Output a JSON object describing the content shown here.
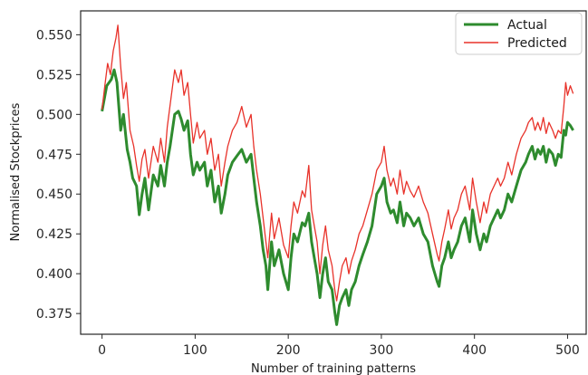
{
  "chart_data": {
    "type": "line",
    "title": "",
    "xlabel": "Number of training patterns",
    "ylabel": "Normalised Stockprices",
    "xlim": [
      -23,
      520
    ],
    "ylim": [
      0.362,
      0.565
    ],
    "xticks": [
      0,
      100,
      200,
      300,
      400,
      500
    ],
    "xtick_labels": [
      "0",
      "100",
      "200",
      "300",
      "400",
      "500"
    ],
    "yticks": [
      0.375,
      0.4,
      0.425,
      0.45,
      0.475,
      0.5,
      0.525,
      0.55
    ],
    "ytick_labels": [
      "0.375",
      "0.400",
      "0.425",
      "0.450",
      "0.475",
      "0.500",
      "0.525",
      "0.550"
    ],
    "grid": false,
    "legend_position": "top-right",
    "series": [
      {
        "name": "Actual",
        "color": "#2e8b2e",
        "points": [
          [
            0,
            0.502
          ],
          [
            5,
            0.518
          ],
          [
            10,
            0.522
          ],
          [
            13,
            0.528
          ],
          [
            16,
            0.52
          ],
          [
            20,
            0.49
          ],
          [
            23,
            0.5
          ],
          [
            27,
            0.478
          ],
          [
            30,
            0.47
          ],
          [
            33,
            0.46
          ],
          [
            37,
            0.455
          ],
          [
            40,
            0.437
          ],
          [
            43,
            0.45
          ],
          [
            46,
            0.46
          ],
          [
            50,
            0.44
          ],
          [
            55,
            0.462
          ],
          [
            60,
            0.455
          ],
          [
            63,
            0.468
          ],
          [
            67,
            0.455
          ],
          [
            70,
            0.47
          ],
          [
            73,
            0.48
          ],
          [
            78,
            0.5
          ],
          [
            82,
            0.502
          ],
          [
            85,
            0.497
          ],
          [
            88,
            0.49
          ],
          [
            92,
            0.496
          ],
          [
            95,
            0.475
          ],
          [
            98,
            0.462
          ],
          [
            102,
            0.47
          ],
          [
            105,
            0.465
          ],
          [
            110,
            0.47
          ],
          [
            113,
            0.455
          ],
          [
            117,
            0.465
          ],
          [
            121,
            0.445
          ],
          [
            125,
            0.455
          ],
          [
            128,
            0.438
          ],
          [
            132,
            0.45
          ],
          [
            135,
            0.462
          ],
          [
            140,
            0.47
          ],
          [
            145,
            0.474
          ],
          [
            150,
            0.478
          ],
          [
            155,
            0.47
          ],
          [
            160,
            0.475
          ],
          [
            163,
            0.46
          ],
          [
            166,
            0.445
          ],
          [
            170,
            0.43
          ],
          [
            173,
            0.415
          ],
          [
            176,
            0.405
          ],
          [
            178,
            0.39
          ],
          [
            182,
            0.42
          ],
          [
            185,
            0.405
          ],
          [
            190,
            0.415
          ],
          [
            195,
            0.4
          ],
          [
            200,
            0.39
          ],
          [
            203,
            0.41
          ],
          [
            206,
            0.425
          ],
          [
            210,
            0.42
          ],
          [
            215,
            0.432
          ],
          [
            218,
            0.43
          ],
          [
            222,
            0.438
          ],
          [
            225,
            0.42
          ],
          [
            228,
            0.41
          ],
          [
            231,
            0.4
          ],
          [
            234,
            0.385
          ],
          [
            237,
            0.4
          ],
          [
            240,
            0.41
          ],
          [
            243,
            0.395
          ],
          [
            247,
            0.39
          ],
          [
            250,
            0.376
          ],
          [
            252,
            0.368
          ],
          [
            255,
            0.38
          ],
          [
            258,
            0.385
          ],
          [
            262,
            0.39
          ],
          [
            265,
            0.38
          ],
          [
            268,
            0.39
          ],
          [
            272,
            0.395
          ],
          [
            276,
            0.405
          ],
          [
            280,
            0.412
          ],
          [
            285,
            0.42
          ],
          [
            290,
            0.43
          ],
          [
            295,
            0.45
          ],
          [
            300,
            0.455
          ],
          [
            303,
            0.46
          ],
          [
            306,
            0.445
          ],
          [
            310,
            0.438
          ],
          [
            313,
            0.44
          ],
          [
            317,
            0.432
          ],
          [
            320,
            0.445
          ],
          [
            324,
            0.43
          ],
          [
            327,
            0.438
          ],
          [
            331,
            0.435
          ],
          [
            335,
            0.43
          ],
          [
            340,
            0.435
          ],
          [
            345,
            0.425
          ],
          [
            350,
            0.42
          ],
          [
            355,
            0.405
          ],
          [
            360,
            0.395
          ],
          [
            362,
            0.392
          ],
          [
            365,
            0.405
          ],
          [
            368,
            0.41
          ],
          [
            372,
            0.42
          ],
          [
            375,
            0.41
          ],
          [
            378,
            0.415
          ],
          [
            382,
            0.42
          ],
          [
            386,
            0.43
          ],
          [
            390,
            0.435
          ],
          [
            395,
            0.42
          ],
          [
            398,
            0.44
          ],
          [
            402,
            0.425
          ],
          [
            406,
            0.415
          ],
          [
            410,
            0.425
          ],
          [
            413,
            0.42
          ],
          [
            417,
            0.43
          ],
          [
            421,
            0.435
          ],
          [
            425,
            0.44
          ],
          [
            428,
            0.435
          ],
          [
            432,
            0.44
          ],
          [
            436,
            0.45
          ],
          [
            440,
            0.445
          ],
          [
            445,
            0.455
          ],
          [
            450,
            0.465
          ],
          [
            455,
            0.47
          ],
          [
            458,
            0.475
          ],
          [
            462,
            0.48
          ],
          [
            465,
            0.472
          ],
          [
            468,
            0.478
          ],
          [
            471,
            0.475
          ],
          [
            474,
            0.48
          ],
          [
            477,
            0.47
          ],
          [
            480,
            0.478
          ],
          [
            484,
            0.475
          ],
          [
            487,
            0.468
          ],
          [
            490,
            0.475
          ],
          [
            493,
            0.473
          ],
          [
            496,
            0.49
          ],
          [
            498,
            0.487
          ],
          [
            500,
            0.495
          ],
          [
            503,
            0.493
          ],
          [
            506,
            0.49
          ]
        ]
      },
      {
        "name": "Predicted",
        "color": "#e8322a",
        "points": [
          [
            0,
            0.503
          ],
          [
            3,
            0.518
          ],
          [
            6,
            0.532
          ],
          [
            9,
            0.525
          ],
          [
            12,
            0.54
          ],
          [
            15,
            0.548
          ],
          [
            17,
            0.556
          ],
          [
            20,
            0.53
          ],
          [
            23,
            0.51
          ],
          [
            26,
            0.52
          ],
          [
            30,
            0.49
          ],
          [
            34,
            0.48
          ],
          [
            37,
            0.468
          ],
          [
            40,
            0.458
          ],
          [
            43,
            0.472
          ],
          [
            46,
            0.478
          ],
          [
            50,
            0.46
          ],
          [
            55,
            0.48
          ],
          [
            60,
            0.47
          ],
          [
            63,
            0.485
          ],
          [
            67,
            0.47
          ],
          [
            70,
            0.492
          ],
          [
            74,
            0.51
          ],
          [
            78,
            0.528
          ],
          [
            82,
            0.52
          ],
          [
            85,
            0.528
          ],
          [
            88,
            0.512
          ],
          [
            92,
            0.52
          ],
          [
            95,
            0.5
          ],
          [
            98,
            0.482
          ],
          [
            102,
            0.495
          ],
          [
            105,
            0.485
          ],
          [
            110,
            0.49
          ],
          [
            113,
            0.475
          ],
          [
            117,
            0.485
          ],
          [
            121,
            0.465
          ],
          [
            125,
            0.475
          ],
          [
            128,
            0.455
          ],
          [
            132,
            0.47
          ],
          [
            135,
            0.48
          ],
          [
            140,
            0.49
          ],
          [
            145,
            0.495
          ],
          [
            150,
            0.505
          ],
          [
            155,
            0.492
          ],
          [
            160,
            0.5
          ],
          [
            163,
            0.48
          ],
          [
            166,
            0.465
          ],
          [
            170,
            0.45
          ],
          [
            173,
            0.435
          ],
          [
            176,
            0.42
          ],
          [
            178,
            0.41
          ],
          [
            182,
            0.438
          ],
          [
            185,
            0.422
          ],
          [
            190,
            0.435
          ],
          [
            195,
            0.418
          ],
          [
            200,
            0.41
          ],
          [
            203,
            0.43
          ],
          [
            206,
            0.445
          ],
          [
            210,
            0.438
          ],
          [
            215,
            0.452
          ],
          [
            218,
            0.448
          ],
          [
            222,
            0.468
          ],
          [
            225,
            0.44
          ],
          [
            228,
            0.43
          ],
          [
            231,
            0.42
          ],
          [
            234,
            0.4
          ],
          [
            237,
            0.418
          ],
          [
            240,
            0.43
          ],
          [
            243,
            0.415
          ],
          [
            247,
            0.405
          ],
          [
            250,
            0.39
          ],
          [
            252,
            0.383
          ],
          [
            255,
            0.395
          ],
          [
            258,
            0.405
          ],
          [
            262,
            0.41
          ],
          [
            265,
            0.4
          ],
          [
            268,
            0.408
          ],
          [
            272,
            0.415
          ],
          [
            276,
            0.425
          ],
          [
            280,
            0.43
          ],
          [
            285,
            0.44
          ],
          [
            290,
            0.45
          ],
          [
            295,
            0.465
          ],
          [
            300,
            0.47
          ],
          [
            303,
            0.48
          ],
          [
            306,
            0.465
          ],
          [
            310,
            0.455
          ],
          [
            313,
            0.46
          ],
          [
            317,
            0.45
          ],
          [
            320,
            0.465
          ],
          [
            324,
            0.45
          ],
          [
            327,
            0.458
          ],
          [
            331,
            0.452
          ],
          [
            335,
            0.448
          ],
          [
            340,
            0.455
          ],
          [
            345,
            0.445
          ],
          [
            350,
            0.438
          ],
          [
            355,
            0.425
          ],
          [
            360,
            0.412
          ],
          [
            362,
            0.408
          ],
          [
            365,
            0.42
          ],
          [
            368,
            0.428
          ],
          [
            372,
            0.44
          ],
          [
            375,
            0.428
          ],
          [
            378,
            0.435
          ],
          [
            382,
            0.44
          ],
          [
            386,
            0.45
          ],
          [
            390,
            0.455
          ],
          [
            395,
            0.44
          ],
          [
            398,
            0.46
          ],
          [
            402,
            0.445
          ],
          [
            406,
            0.432
          ],
          [
            410,
            0.445
          ],
          [
            413,
            0.438
          ],
          [
            417,
            0.45
          ],
          [
            421,
            0.455
          ],
          [
            425,
            0.46
          ],
          [
            428,
            0.455
          ],
          [
            432,
            0.46
          ],
          [
            436,
            0.47
          ],
          [
            440,
            0.462
          ],
          [
            445,
            0.475
          ],
          [
            450,
            0.485
          ],
          [
            455,
            0.49
          ],
          [
            458,
            0.495
          ],
          [
            462,
            0.498
          ],
          [
            465,
            0.49
          ],
          [
            468,
            0.495
          ],
          [
            471,
            0.49
          ],
          [
            474,
            0.498
          ],
          [
            477,
            0.488
          ],
          [
            480,
            0.495
          ],
          [
            484,
            0.49
          ],
          [
            487,
            0.485
          ],
          [
            490,
            0.49
          ],
          [
            493,
            0.488
          ],
          [
            496,
            0.505
          ],
          [
            498,
            0.52
          ],
          [
            500,
            0.512
          ],
          [
            503,
            0.518
          ],
          [
            506,
            0.513
          ]
        ]
      }
    ]
  }
}
